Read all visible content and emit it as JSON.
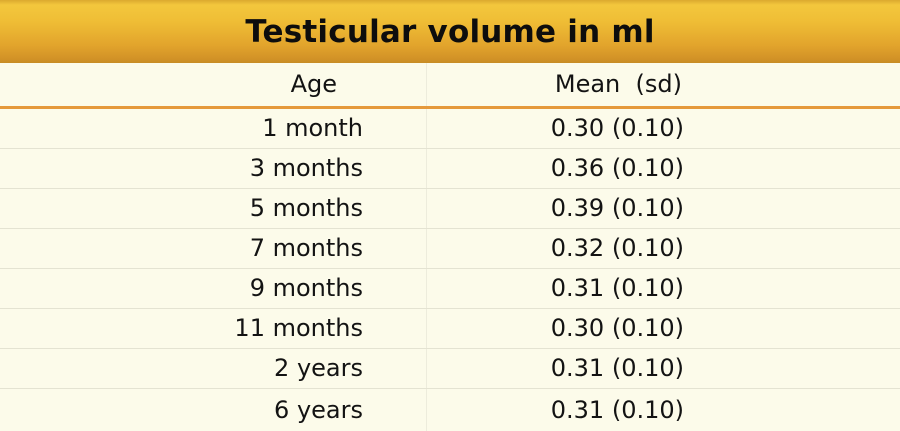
{
  "title": "Testicular volume in ml",
  "header": {
    "age_label": "Age",
    "mean_label": "Mean  (sd)"
  },
  "colors": {
    "banner_gold_top": "#f3c73d",
    "banner_gold_bottom": "#c78c24",
    "background_cream": "#fcfbea",
    "header_underline_orange": "#e5993b",
    "row_separator": "#e4e3d2",
    "column_divider": "#edecdc",
    "text": "#131313"
  },
  "chart_data": {
    "type": "table",
    "title": "Testicular volume in ml",
    "columns": [
      "Age",
      "Mean (sd)"
    ],
    "rows": [
      {
        "age": "1 month",
        "mean": 0.3,
        "sd": 0.1,
        "display": "0.30 (0.10)"
      },
      {
        "age": "3 months",
        "mean": 0.36,
        "sd": 0.1,
        "display": "0.36 (0.10)"
      },
      {
        "age": "5 months",
        "mean": 0.39,
        "sd": 0.1,
        "display": "0.39 (0.10)"
      },
      {
        "age": "7 months",
        "mean": 0.32,
        "sd": 0.1,
        "display": "0.32 (0.10)"
      },
      {
        "age": "9 months",
        "mean": 0.31,
        "sd": 0.1,
        "display": "0.31 (0.10)"
      },
      {
        "age": "11 months",
        "mean": 0.3,
        "sd": 0.1,
        "display": "0.30 (0.10)"
      },
      {
        "age": "2 years",
        "mean": 0.31,
        "sd": 0.1,
        "display": "0.31 (0.10)"
      },
      {
        "age": "6 years",
        "mean": 0.31,
        "sd": 0.1,
        "display": "0.31 (0.10)"
      }
    ]
  }
}
